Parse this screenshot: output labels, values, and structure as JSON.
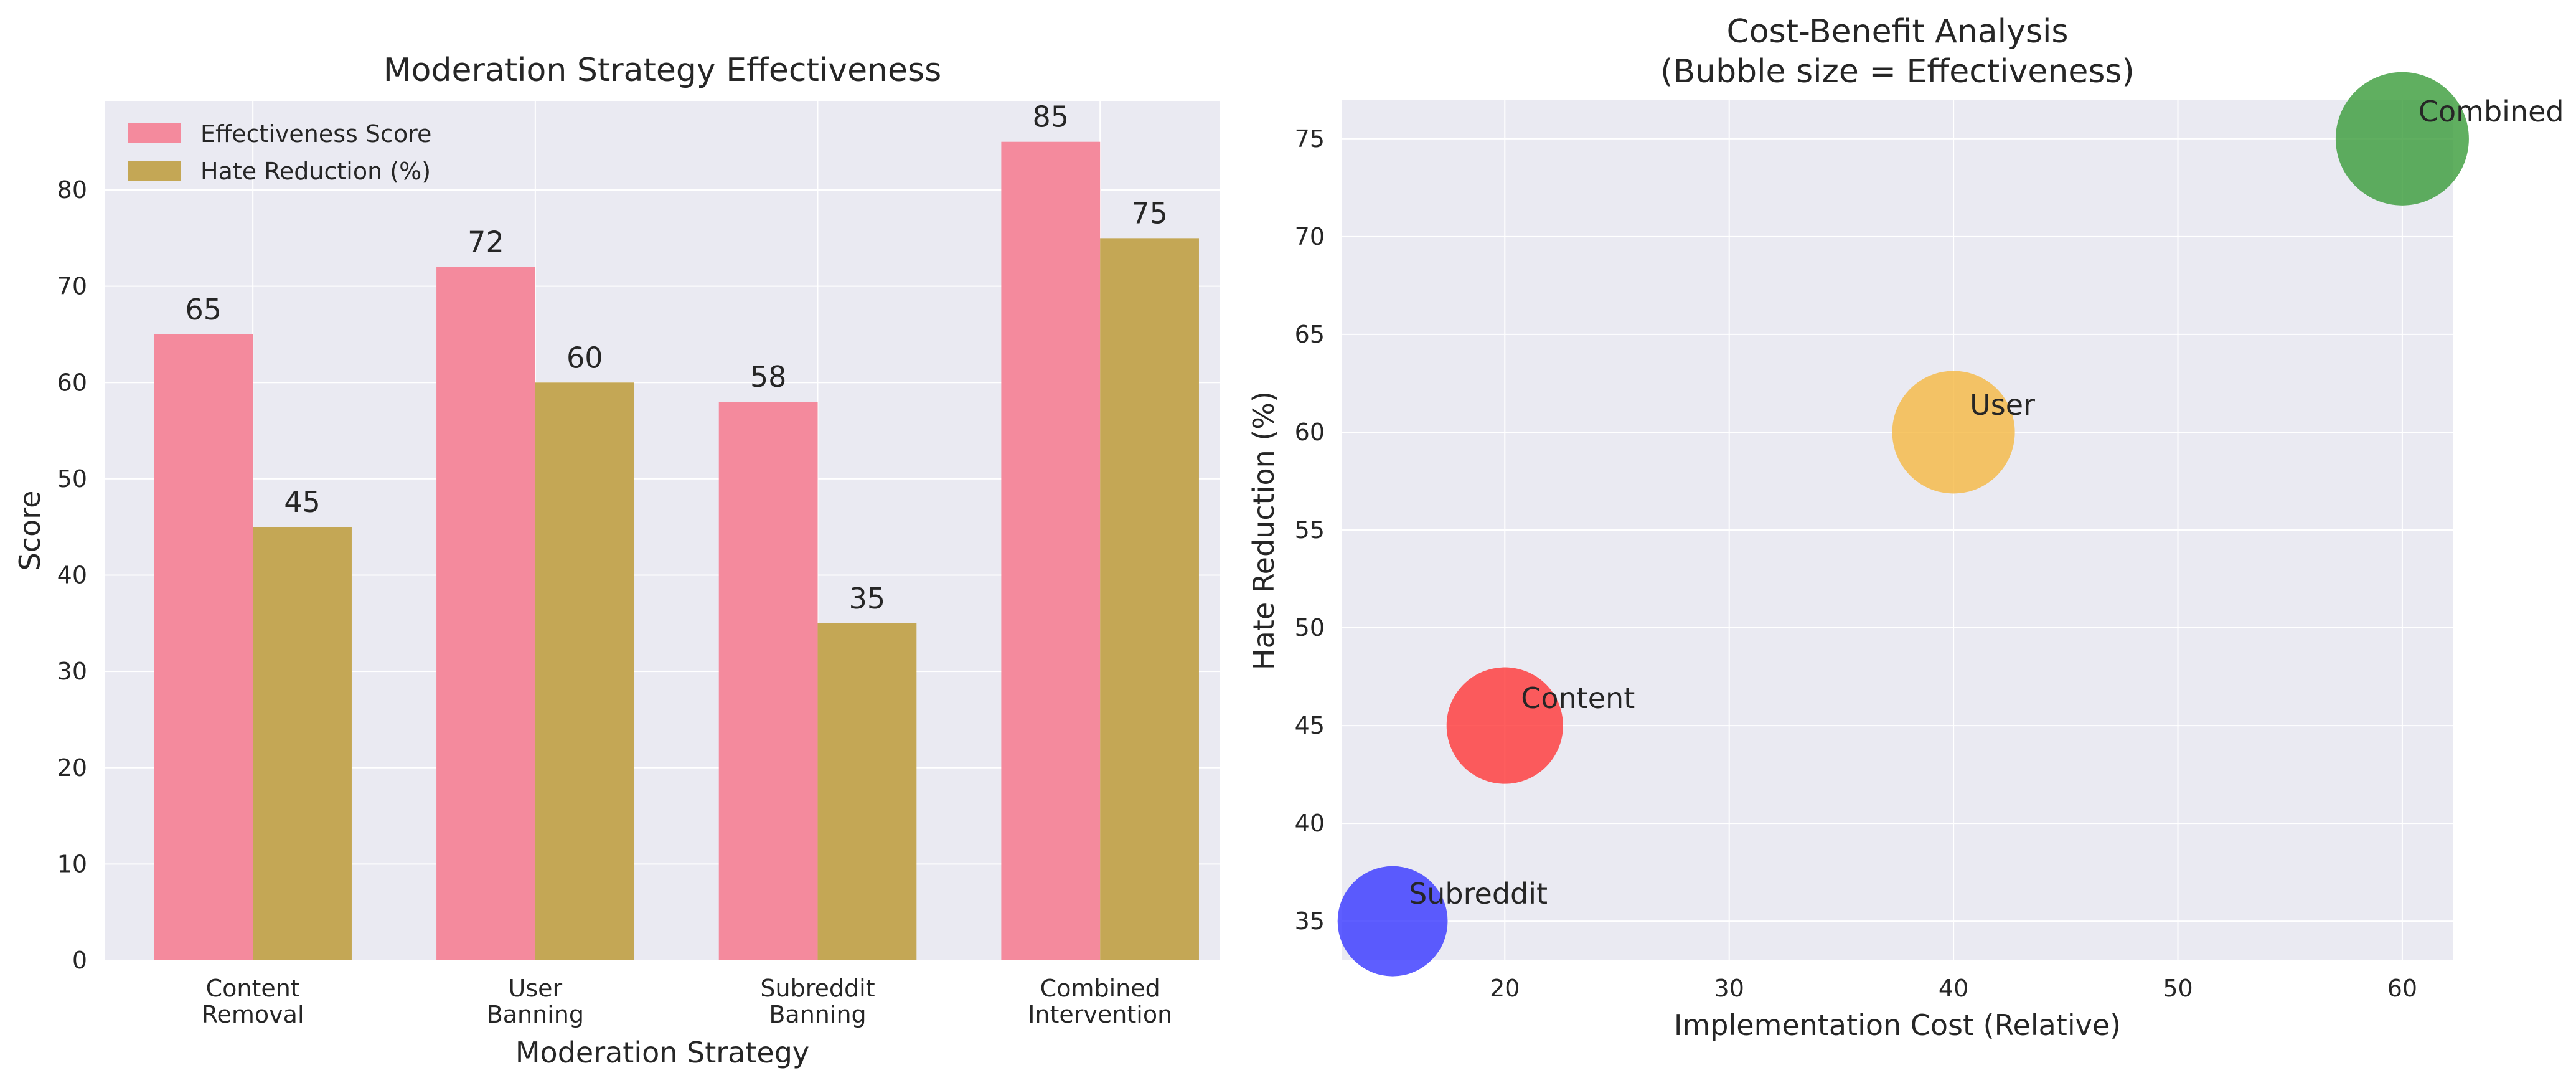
{
  "chart_data": [
    {
      "type": "bar",
      "title": "Moderation Strategy Effectiveness",
      "xlabel": "Moderation Strategy",
      "ylabel": "Score",
      "categories": [
        [
          "Content",
          "Removal"
        ],
        [
          "User",
          "Banning"
        ],
        [
          "Subreddit",
          "Banning"
        ],
        [
          "Combined",
          "Intervention"
        ]
      ],
      "series": [
        {
          "name": "Effectiveness Score",
          "values": [
            65,
            72,
            58,
            85
          ],
          "color": "#f48a9d"
        },
        {
          "name": "Hate Reduction (%)",
          "values": [
            45,
            60,
            35,
            75
          ],
          "color": "#c4a755"
        }
      ],
      "ylim": [
        0,
        89.25
      ],
      "yticks": [
        0,
        10,
        20,
        30,
        40,
        50,
        60,
        70,
        80
      ],
      "grid": true,
      "legend": "top-left",
      "background": "#eaeaf2"
    },
    {
      "type": "scatter",
      "title": [
        "Cost-Benefit Analysis",
        "(Bubble size = Effectiveness)"
      ],
      "xlabel": "Implementation Cost (Relative)",
      "ylabel": "Hate Reduction (%)",
      "points": [
        {
          "label": "Content",
          "x": 20,
          "y": 45,
          "size": 65,
          "color": "#ff3b3b"
        },
        {
          "label": "User",
          "x": 40,
          "y": 60,
          "size": 72,
          "color": "#f5b945"
        },
        {
          "label": "Subreddit",
          "x": 15,
          "y": 35,
          "size": 58,
          "color": "#3b3bff"
        },
        {
          "label": "Combined",
          "x": 60,
          "y": 75,
          "size": 85,
          "color": "#3d9e3d"
        }
      ],
      "xlim": [
        12.75,
        62.25
      ],
      "ylim": [
        33.0,
        77.0
      ],
      "xticks": [
        20,
        30,
        40,
        50,
        60
      ],
      "yticks": [
        35,
        40,
        45,
        50,
        55,
        60,
        65,
        70,
        75
      ],
      "grid": true,
      "background": "#eaeaf2"
    }
  ]
}
